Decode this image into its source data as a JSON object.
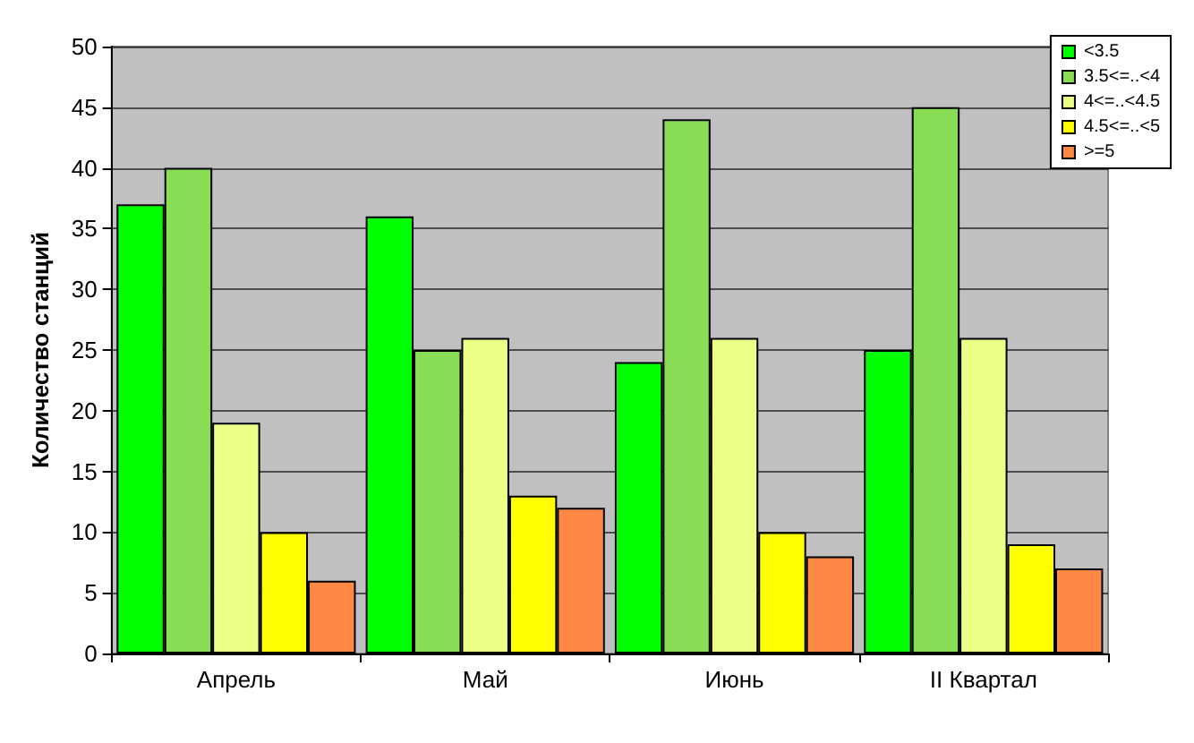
{
  "chart_data": {
    "type": "bar",
    "ylabel": "Количество станций",
    "categories": [
      "Апрель",
      "Май",
      "Июнь",
      "II Квартал"
    ],
    "series": [
      {
        "name": "<3.5",
        "color": "#00ff00",
        "values": [
          37,
          36,
          24,
          25
        ]
      },
      {
        "name": "3.5<=..<4",
        "color": "#88dd55",
        "values": [
          40,
          25,
          44,
          45
        ]
      },
      {
        "name": "4<=..<4.5",
        "color": "#eeff88",
        "values": [
          19,
          26,
          26,
          26
        ]
      },
      {
        "name": "4.5<=..<5",
        "color": "#ffff00",
        "values": [
          10,
          13,
          10,
          9
        ]
      },
      {
        "name": ">=5",
        "color": "#ff8844",
        "values": [
          6,
          12,
          8,
          7
        ]
      }
    ],
    "ylim": [
      0,
      50
    ],
    "yticks": [
      0,
      5,
      10,
      15,
      20,
      25,
      30,
      35,
      40,
      45,
      50
    ],
    "grid": "y",
    "legend": "top right"
  }
}
